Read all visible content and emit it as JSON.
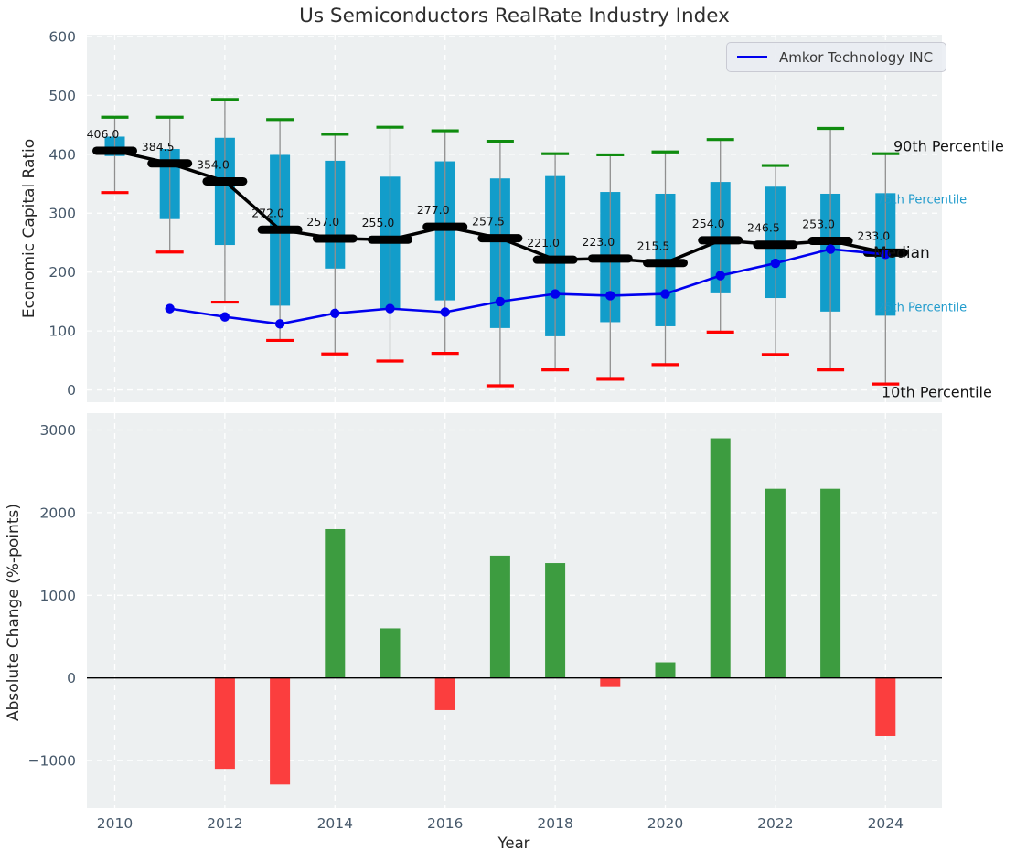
{
  "title": "Us Semiconductors RealRate Industry Index",
  "colors": {
    "box": "#129dca",
    "p90_cap": "#0f8c0f",
    "p10_cap": "#ff0000",
    "median_line": "#000000",
    "company_line": "#0000ee",
    "bar_positive": "#3d9c40",
    "bar_negative": "#fb3e3e",
    "plot_background": "#edf0f1",
    "grid": "#ffffff",
    "tick_label": "#46586a",
    "axis_label": "#262626",
    "percentile_label_teal": "#209bcc",
    "whisker": "#8f8f8f"
  },
  "chart_data": [
    {
      "type": "boxplot-line",
      "title": "Us Semiconductors RealRate Industry Index",
      "ylabel": "Economic Capital Ratio",
      "ylim": [
        -20,
        604
      ],
      "yticks": [
        0,
        100,
        200,
        300,
        400,
        500,
        600
      ],
      "ytick_labels": [
        "0",
        "100",
        "200",
        "300",
        "400",
        "500",
        "600"
      ],
      "grid": true,
      "years": [
        2010,
        2011,
        2012,
        2013,
        2014,
        2015,
        2016,
        2017,
        2018,
        2019,
        2020,
        2021,
        2022,
        2023,
        2024
      ],
      "percentiles": {
        "p90": [
          463,
          463,
          493,
          459,
          434,
          446,
          440,
          422,
          401,
          399,
          404,
          425,
          381,
          444,
          401
        ],
        "p75": [
          430,
          409,
          428,
          399,
          389,
          362,
          388,
          359,
          363,
          336,
          333,
          353,
          345,
          333,
          334
        ],
        "median": [
          406,
          384.5,
          354,
          272,
          257,
          255,
          277,
          257.5,
          221,
          223,
          215.5,
          254,
          246.5,
          253,
          233
        ],
        "p25": [
          397,
          290,
          246,
          143,
          206,
          137,
          152,
          105,
          91,
          115,
          108,
          164,
          156,
          133,
          126
        ],
        "p10": [
          335,
          234,
          149,
          84,
          61,
          49,
          62,
          7,
          34,
          18,
          43,
          98,
          60,
          34,
          10
        ]
      },
      "median_labels": [
        "406.0",
        "384.5",
        "354.0",
        "272.0",
        "257.0",
        "255.0",
        "277.0",
        "257.5",
        "221.0",
        "223.0",
        "215.5",
        "254.0",
        "246.5",
        "253.0",
        "233.0"
      ],
      "series": [
        {
          "name": "Amkor Technology INC",
          "color": "#0000ee",
          "x": [
            2011,
            2012,
            2013,
            2014,
            2015,
            2016,
            2017,
            2018,
            2019,
            2020,
            2021,
            2022,
            2023,
            2024
          ],
          "values": [
            138,
            124,
            112,
            130,
            138,
            132,
            150,
            163,
            160,
            163,
            194,
            215,
            239,
            230
          ]
        }
      ],
      "legend": {
        "label": "Amkor Technology INC",
        "position": "upper right"
      },
      "annotation_labels": {
        "p90": "90th Percentile",
        "p75": "75th Percentile",
        "median": "Median",
        "p25": "25th Percentile",
        "p10": "10th Percentile"
      }
    },
    {
      "type": "bar",
      "ylabel": "Absolute Change (%-points)",
      "xlabel": "Year",
      "ylim": [
        -1570,
        3200
      ],
      "yticks": [
        -1000,
        0,
        1000,
        2000,
        3000
      ],
      "ytick_labels": [
        "−1000",
        "0",
        "1000",
        "2000",
        "3000"
      ],
      "xticks": [
        2010,
        2012,
        2014,
        2016,
        2018,
        2020,
        2022,
        2024
      ],
      "grid": true,
      "years": [
        2010,
        2011,
        2012,
        2013,
        2014,
        2015,
        2016,
        2017,
        2018,
        2019,
        2020,
        2021,
        2022,
        2023,
        2024
      ],
      "values": [
        null,
        null,
        -1100,
        -1290,
        1800,
        600,
        -390,
        1480,
        1390,
        -110,
        190,
        2900,
        2290,
        2290,
        -700
      ],
      "positive_color": "#3d9c40",
      "negative_color": "#fb3e3e"
    }
  ]
}
